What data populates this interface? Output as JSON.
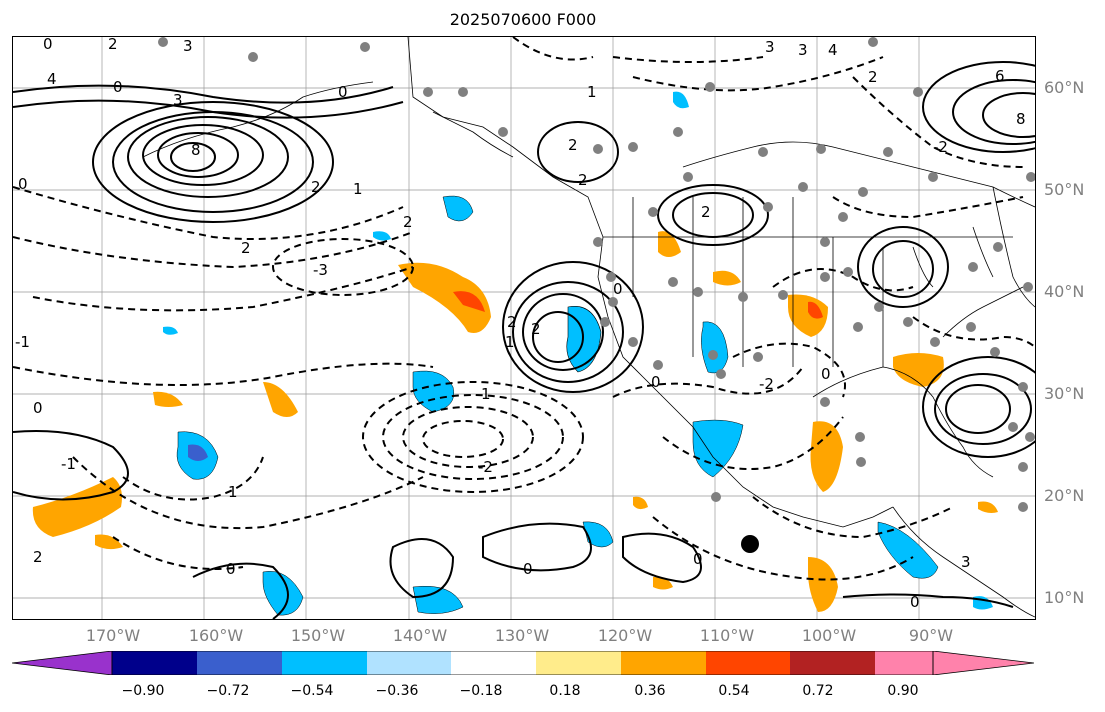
{
  "title": "2025070600 F000",
  "lat_labels": [
    "60°N",
    "50°N",
    "40°N",
    "30°N",
    "20°N",
    "10°N"
  ],
  "lon_labels": [
    "170°W",
    "160°W",
    "150°W",
    "140°W",
    "130°W",
    "120°W",
    "110°W",
    "100°W",
    "90°W"
  ],
  "colorbar": {
    "ticks": [
      "−0.90",
      "−0.72",
      "−0.54",
      "−0.36",
      "−0.18",
      "0.18",
      "0.36",
      "0.54",
      "0.72",
      "0.90"
    ],
    "colors": [
      "#9932cc",
      "#00008b",
      "#3a5fcd",
      "#00bfff",
      "#b0e2ff",
      "#ffffff",
      "#ffec8b",
      "#ffa500",
      "#ff4500",
      "#b22222",
      "#ff82ab"
    ]
  },
  "contour_labels": [
    "0",
    "2",
    "3",
    "4",
    "0",
    "3",
    "8",
    "0",
    "2",
    "1",
    "2",
    "1",
    "2",
    "0",
    "2",
    "3",
    "2",
    "-3",
    "2",
    "2",
    "1",
    "0",
    "-2",
    "0",
    "-1",
    "-2",
    "1",
    "0",
    "0",
    "-1",
    "0",
    "0",
    "2",
    "1",
    "6",
    "8",
    "-2",
    "2",
    "3",
    "4",
    "2",
    "0",
    "0",
    "3"
  ]
}
